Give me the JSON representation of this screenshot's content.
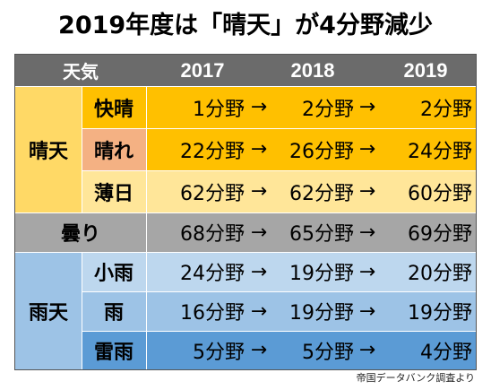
{
  "title": "2019年度は「晴天」が4分野減少",
  "header": {
    "weather": "天気",
    "years": [
      "2017",
      "2018",
      "2019"
    ]
  },
  "arrow": "→",
  "groups": {
    "sunny": "晴天",
    "cloudy": "曇り",
    "rainy": "雨天"
  },
  "rows": {
    "kaisei": {
      "label": "快晴",
      "values": [
        "1分野",
        "2分野",
        "2分野"
      ]
    },
    "hare": {
      "label": "晴れ",
      "values": [
        "22分野",
        "26分野",
        "24分野"
      ]
    },
    "usubi": {
      "label": "薄日",
      "values": [
        "62分野",
        "62分野",
        "60分野"
      ]
    },
    "kumori": {
      "values": [
        "68分野",
        "65分野",
        "69分野"
      ]
    },
    "kosame": {
      "label": "小雨",
      "values": [
        "24分野",
        "19分野",
        "20分野"
      ]
    },
    "ame": {
      "label": "雨",
      "values": [
        "16分野",
        "19分野",
        "19分野"
      ]
    },
    "raiu": {
      "label": "雷雨",
      "values": [
        "5分野",
        "5分野",
        "4分野"
      ]
    }
  },
  "source": "帝国データバンク調査より",
  "colors": {
    "header": "#6b6b6b",
    "sunny_group": "#ffd966",
    "kaisei": "#ffc000",
    "hare_label": "#f4b183",
    "hare": "#ffc000",
    "usubi": "#ffe699",
    "cloudy": "#a6a6a6",
    "rainy_group": "#9dc3e6",
    "kosame": "#bdd7ee",
    "ame": "#9dc3e6",
    "raiu": "#5b9bd5"
  }
}
